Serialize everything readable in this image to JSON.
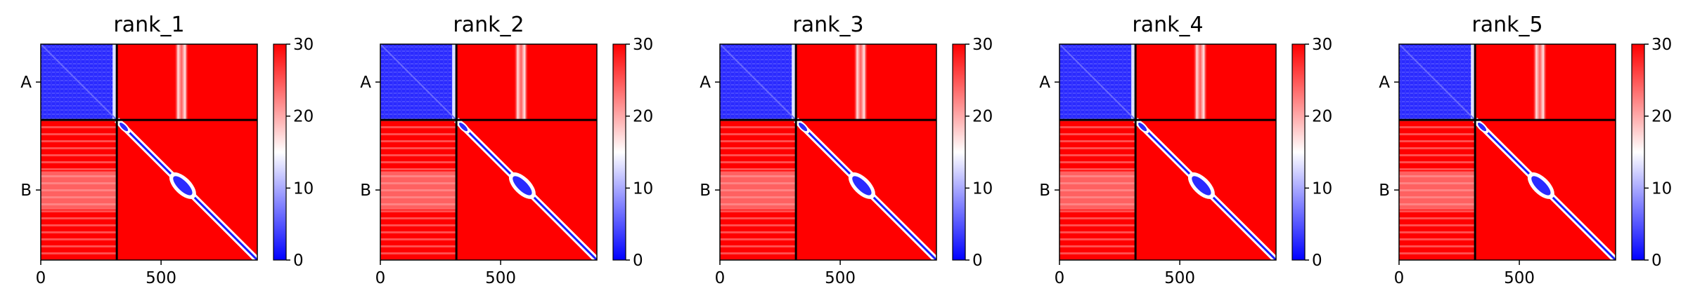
{
  "figure": {
    "panels": [
      {
        "title": "rank_1"
      },
      {
        "title": "rank_2"
      },
      {
        "title": "rank_3"
      },
      {
        "title": "rank_4"
      },
      {
        "title": "rank_5"
      }
    ]
  },
  "chart_data": [
    {
      "type": "heatmap",
      "title": "rank_1",
      "xlabel": "",
      "ylabel": "",
      "xlim": [
        0,
        900
      ],
      "xticks": [
        0,
        500
      ],
      "yticks": [
        "A",
        "B"
      ],
      "chain_boundary": 316,
      "colorbar": {
        "min": 0,
        "max": 30,
        "ticks": [
          0,
          10,
          20,
          30
        ],
        "colormap": [
          "#0000ff",
          "#ffffff",
          "#ff0000"
        ]
      },
      "white_band": [
        555,
        615
      ]
    },
    {
      "type": "heatmap",
      "title": "rank_2",
      "xlabel": "",
      "ylabel": "",
      "xlim": [
        0,
        900
      ],
      "xticks": [
        0,
        500
      ],
      "yticks": [
        "A",
        "B"
      ],
      "chain_boundary": 316,
      "colorbar": {
        "min": 0,
        "max": 30,
        "ticks": [
          0,
          10,
          20,
          30
        ],
        "colormap": [
          "#0000ff",
          "#ffffff",
          "#ff0000"
        ]
      },
      "white_band": [
        555,
        615
      ]
    },
    {
      "type": "heatmap",
      "title": "rank_3",
      "xlabel": "",
      "ylabel": "",
      "xlim": [
        0,
        900
      ],
      "xticks": [
        0,
        500
      ],
      "yticks": [
        "A",
        "B"
      ],
      "chain_boundary": 316,
      "colorbar": {
        "min": 0,
        "max": 30,
        "ticks": [
          0,
          10,
          20,
          30
        ],
        "colormap": [
          "#0000ff",
          "#ffffff",
          "#ff0000"
        ]
      },
      "white_band": [
        555,
        615
      ]
    },
    {
      "type": "heatmap",
      "title": "rank_4",
      "xlabel": "",
      "ylabel": "",
      "xlim": [
        0,
        900
      ],
      "xticks": [
        0,
        500
      ],
      "yticks": [
        "A",
        "B"
      ],
      "chain_boundary": 316,
      "colorbar": {
        "min": 0,
        "max": 30,
        "ticks": [
          0,
          10,
          20,
          30
        ],
        "colormap": [
          "#0000ff",
          "#ffffff",
          "#ff0000"
        ]
      },
      "white_band": [
        555,
        615
      ]
    },
    {
      "type": "heatmap",
      "title": "rank_5",
      "xlabel": "",
      "ylabel": "",
      "xlim": [
        0,
        900
      ],
      "xticks": [
        0,
        500
      ],
      "yticks": [
        "A",
        "B"
      ],
      "chain_boundary": 316,
      "colorbar": {
        "min": 0,
        "max": 30,
        "ticks": [
          0,
          10,
          20,
          30
        ],
        "colormap": [
          "#0000ff",
          "#ffffff",
          "#ff0000"
        ]
      },
      "white_band": [
        555,
        615
      ]
    }
  ]
}
